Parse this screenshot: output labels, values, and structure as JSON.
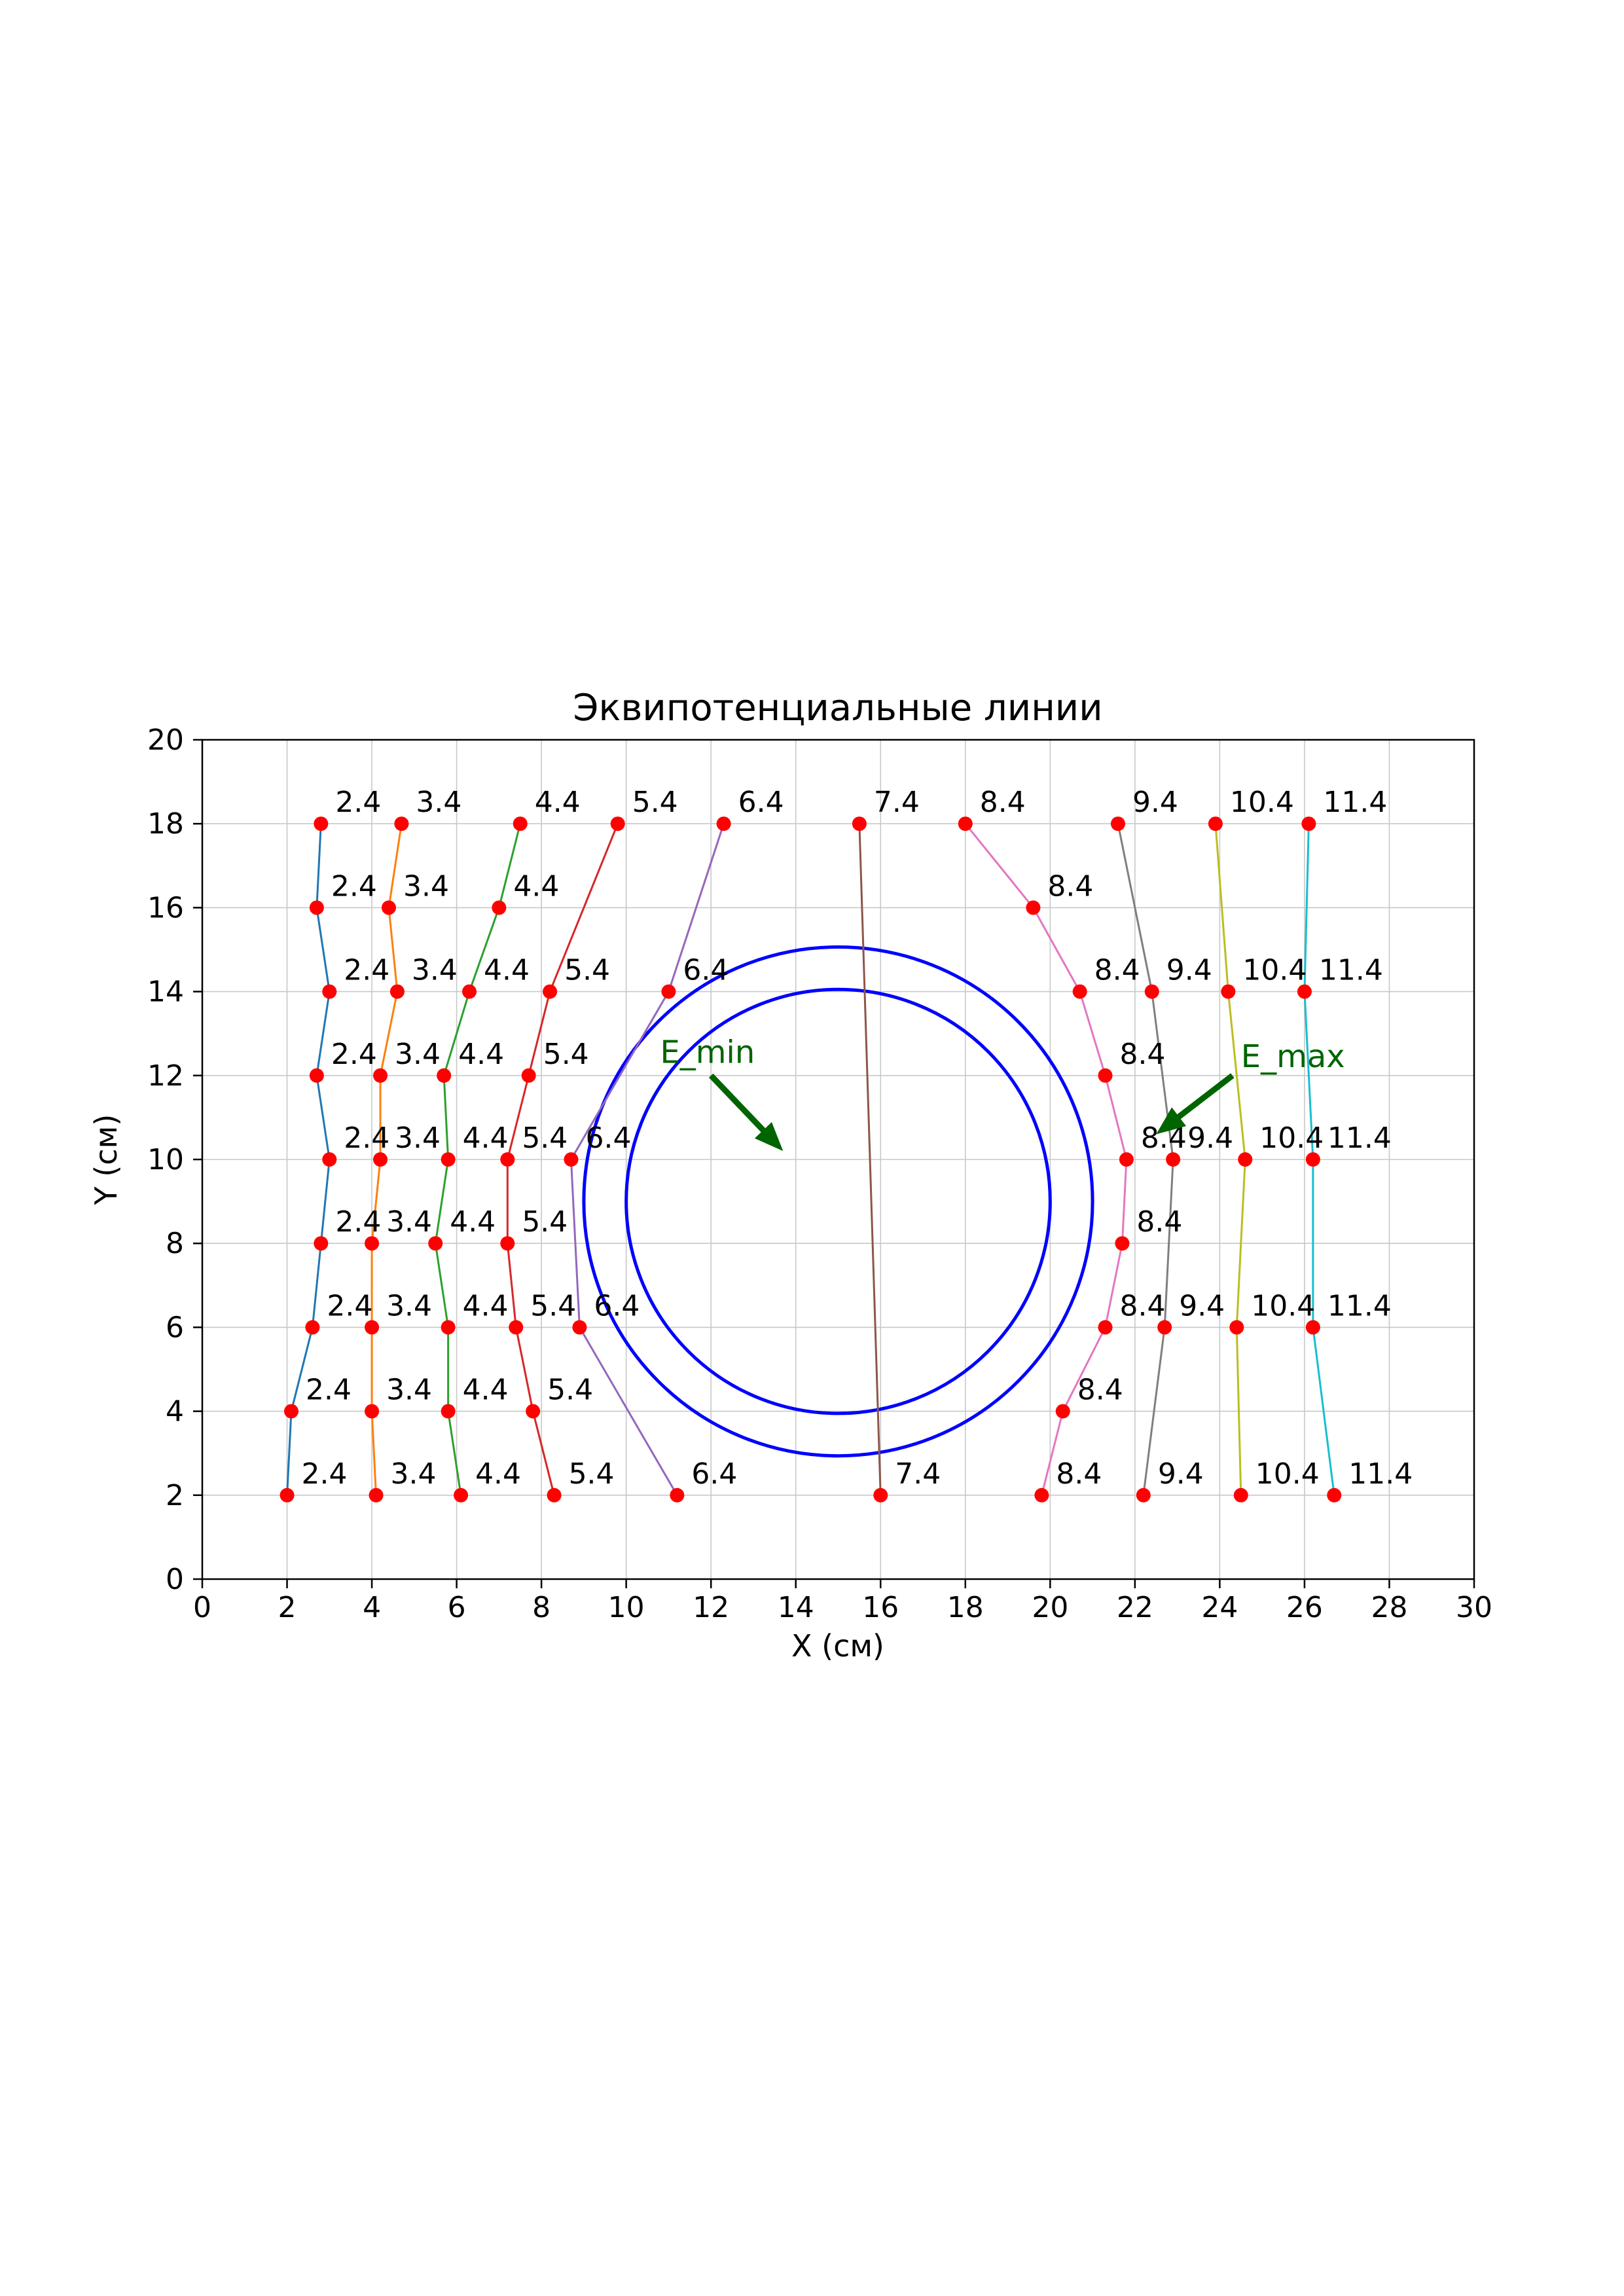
{
  "title": "Эквипотенциальные линии",
  "chart_data": {
    "type": "line",
    "title": "Эквипотенциальные линии",
    "xlabel": "X (см)",
    "ylabel": "Y (см)",
    "xlim": [
      0,
      30
    ],
    "ylim": [
      0,
      20
    ],
    "xticks": [
      0,
      2,
      4,
      6,
      8,
      10,
      12,
      14,
      16,
      18,
      20,
      22,
      24,
      26,
      28,
      30
    ],
    "yticks": [
      0,
      2,
      4,
      6,
      8,
      10,
      12,
      14,
      16,
      18,
      20
    ],
    "grid": true,
    "grid_color": "#c8c8c8",
    "marker_color": "#ff0000",
    "series": [
      {
        "label": "2.4",
        "color": "#1f77b4",
        "points": [
          [
            2.8,
            18
          ],
          [
            2.7,
            16
          ],
          [
            3.0,
            14
          ],
          [
            2.7,
            12
          ],
          [
            3.0,
            10
          ],
          [
            2.8,
            8
          ],
          [
            2.6,
            6
          ],
          [
            2.1,
            4
          ],
          [
            2.0,
            2
          ]
        ]
      },
      {
        "label": "3.4",
        "color": "#ff7f0e",
        "points": [
          [
            4.7,
            18
          ],
          [
            4.4,
            16
          ],
          [
            4.6,
            14
          ],
          [
            4.2,
            12
          ],
          [
            4.2,
            10
          ],
          [
            4.0,
            8
          ],
          [
            4.0,
            6
          ],
          [
            4.0,
            4
          ],
          [
            4.1,
            2
          ]
        ]
      },
      {
        "label": "4.4",
        "color": "#2ca02c",
        "points": [
          [
            7.5,
            18
          ],
          [
            7.0,
            16
          ],
          [
            6.3,
            14
          ],
          [
            5.7,
            12
          ],
          [
            5.8,
            10
          ],
          [
            5.5,
            8
          ],
          [
            5.8,
            6
          ],
          [
            5.8,
            4
          ],
          [
            6.1,
            2
          ]
        ]
      },
      {
        "label": "5.4",
        "color": "#d62728",
        "points": [
          [
            9.8,
            18
          ],
          [
            8.2,
            14
          ],
          [
            7.7,
            12
          ],
          [
            7.2,
            10
          ],
          [
            7.2,
            8
          ],
          [
            7.4,
            6
          ],
          [
            7.8,
            4
          ],
          [
            8.3,
            2
          ]
        ]
      },
      {
        "label": "6.4",
        "color": "#9467bd",
        "points": [
          [
            12.3,
            18
          ],
          [
            11.0,
            14
          ],
          [
            8.7,
            10
          ],
          [
            8.9,
            6
          ],
          [
            11.2,
            2
          ]
        ]
      },
      {
        "label": "7.4",
        "color": "#8c564b",
        "points": [
          [
            15.5,
            18
          ],
          [
            16.0,
            2
          ]
        ]
      },
      {
        "label": "8.4",
        "color": "#e377c2",
        "points": [
          [
            18.0,
            18
          ],
          [
            19.6,
            16
          ],
          [
            20.7,
            14
          ],
          [
            21.3,
            12
          ],
          [
            21.8,
            10
          ],
          [
            21.7,
            8
          ],
          [
            21.3,
            6
          ],
          [
            20.3,
            4
          ],
          [
            19.8,
            2
          ]
        ]
      },
      {
        "label": "9.4",
        "color": "#7f7f7f",
        "points": [
          [
            21.6,
            18
          ],
          [
            22.4,
            14
          ],
          [
            22.9,
            10
          ],
          [
            22.7,
            6
          ],
          [
            22.2,
            2
          ]
        ]
      },
      {
        "label": "10.4",
        "color": "#bcbd22",
        "points": [
          [
            23.9,
            18
          ],
          [
            24.2,
            14
          ],
          [
            24.6,
            10
          ],
          [
            24.4,
            6
          ],
          [
            24.5,
            2
          ]
        ]
      },
      {
        "label": "11.4",
        "color": "#17becf",
        "points": [
          [
            26.1,
            18
          ],
          [
            26.0,
            14
          ],
          [
            26.2,
            10
          ],
          [
            26.2,
            6
          ],
          [
            26.7,
            2
          ]
        ]
      }
    ],
    "circles": [
      {
        "cx": 15,
        "cy": 9,
        "r": 6,
        "color": "#0000ff"
      },
      {
        "cx": 15,
        "cy": 9,
        "r": 5,
        "color": "#0000ff"
      }
    ],
    "annotations": [
      {
        "text": "E_min",
        "color": "#006400",
        "text_xy": [
          10.8,
          12.3
        ],
        "arrow_from": [
          12.0,
          12.0
        ],
        "arrow_to": [
          13.7,
          10.2
        ]
      },
      {
        "text": "E_max",
        "color": "#006400",
        "text_xy": [
          24.5,
          12.2
        ],
        "arrow_from": [
          24.3,
          12.0
        ],
        "arrow_to": [
          22.5,
          10.6
        ]
      }
    ]
  }
}
